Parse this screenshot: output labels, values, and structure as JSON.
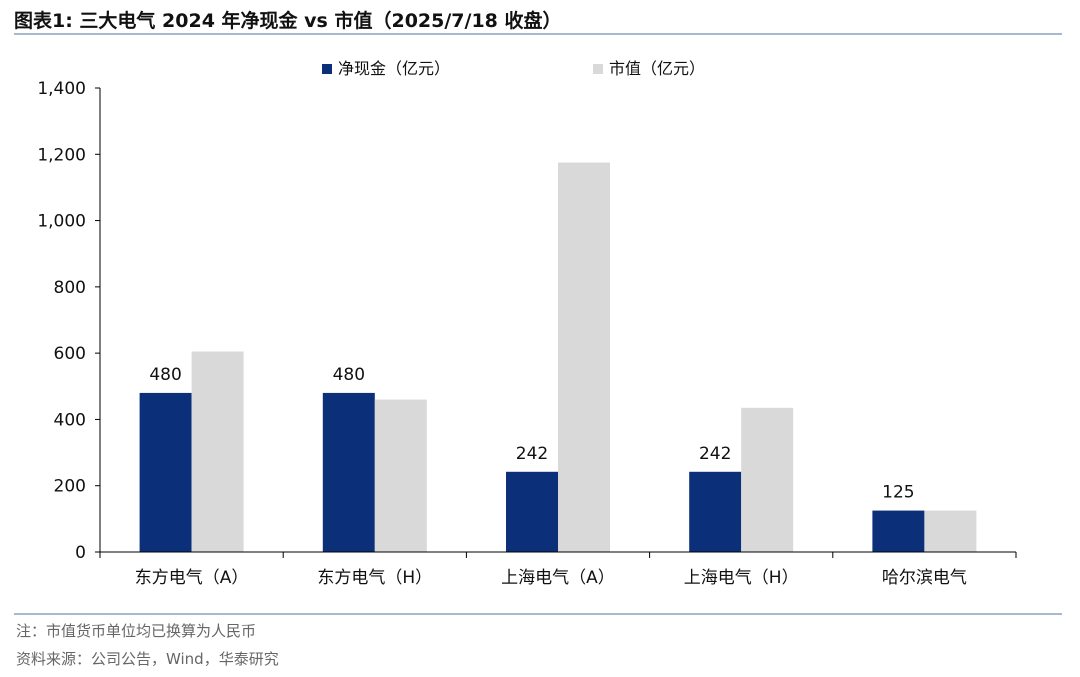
{
  "header": {
    "title": "图表1:  三大电气 2024 年净现金 vs 市值（2025/7/18 收盘）"
  },
  "footer": {
    "note": "注：市值货币单位均已换算为人民币",
    "source": "资料来源：公司公告，Wind，华泰研究"
  },
  "chart_data": {
    "type": "bar",
    "categories": [
      "东方电气（A）",
      "东方电气（H）",
      "上海电气（A）",
      "上海电气（H）",
      "哈尔滨电气"
    ],
    "series": [
      {
        "name": "净现金（亿元）",
        "color": "#0b2f79",
        "values": [
          480,
          480,
          242,
          242,
          125
        ],
        "data_labels": [
          "480",
          "480",
          "242",
          "242",
          "125"
        ]
      },
      {
        "name": "市值（亿元）",
        "color": "#d9d9d9",
        "values": [
          605,
          460,
          1175,
          435,
          125
        ]
      }
    ],
    "ylim": [
      0,
      1400
    ],
    "yticks": [
      0,
      200,
      400,
      600,
      800,
      1000,
      1200,
      1400
    ],
    "ytick_labels": [
      "0",
      "200",
      "400",
      "600",
      "800",
      "1,000",
      "1,200",
      "1,400"
    ],
    "legend_position": "top-center",
    "grid": false
  }
}
